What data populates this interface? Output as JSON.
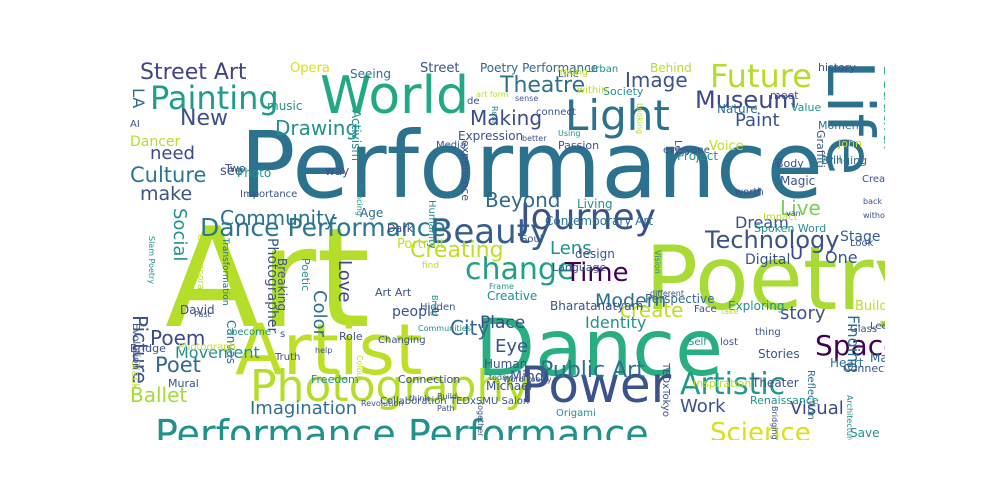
{
  "words": [
    {
      "text": "Art",
      "color": "#b5de2b"
    },
    {
      "text": "Performance",
      "color": "#2c728e"
    },
    {
      "text": "Poetry",
      "color": "#a8db34"
    },
    {
      "text": "Dance",
      "color": "#28ae80"
    },
    {
      "text": "Artist",
      "color": "#bddf26"
    },
    {
      "text": "World",
      "color": "#22a884"
    },
    {
      "text": "Life",
      "color": "#2d708e"
    },
    {
      "text": "Power",
      "color": "#3b528b"
    },
    {
      "text": "Photography",
      "color": "#b5de2b"
    },
    {
      "text": "Performance Performance",
      "color": "#21918c"
    },
    {
      "text": "Light",
      "color": "#2c728e"
    },
    {
      "text": "Journey",
      "color": "#3b528b"
    },
    {
      "text": "Beauty",
      "color": "#355f8d"
    },
    {
      "text": "Painting",
      "color": "#1f9e89"
    },
    {
      "text": "Future",
      "color": "#b5de2b"
    },
    {
      "text": "change",
      "color": "#1fa088"
    },
    {
      "text": "Space",
      "color": "#440154"
    },
    {
      "text": "Science",
      "color": "#d8e219"
    },
    {
      "text": "Artistic",
      "color": "#1f9a8a"
    },
    {
      "text": "Dance Performance",
      "color": "#2a788e"
    },
    {
      "text": "Technology",
      "color": "#3b528b"
    },
    {
      "text": "Museum",
      "color": "#3e4989"
    },
    {
      "text": "Time",
      "color": "#440154"
    },
    {
      "text": "Street Art",
      "color": "#414487"
    },
    {
      "text": "Culture",
      "color": "#2a788e"
    },
    {
      "text": "Theatre",
      "color": "#2c728e"
    },
    {
      "text": "Drawing",
      "color": "#21918c"
    },
    {
      "text": "Image",
      "color": "#3b528b"
    },
    {
      "text": "Making",
      "color": "#3e4a89"
    },
    {
      "text": "Creating",
      "color": "#bddf26"
    },
    {
      "text": "Ballet",
      "color": "#a5db36"
    },
    {
      "text": "Poet",
      "color": "#31688e"
    },
    {
      "text": "Poem",
      "color": "#3e4989"
    },
    {
      "text": "Public Art",
      "color": "#2d708e"
    },
    {
      "text": "Modern",
      "color": "#2e6f8e"
    },
    {
      "text": "Beautiful",
      "color": "#35b779"
    },
    {
      "text": "Live",
      "color": "#7ad151"
    },
    {
      "text": "Paint",
      "color": "#3b528b"
    },
    {
      "text": "Lens",
      "color": "#21918c"
    },
    {
      "text": "City",
      "color": "#31688e"
    },
    {
      "text": "Eye",
      "color": "#3b528b"
    },
    {
      "text": "Place",
      "color": "#3e4a89"
    },
    {
      "text": "Picture",
      "color": "#3b528b"
    },
    {
      "text": "Community",
      "color": "#2c728e"
    },
    {
      "text": "Beyond",
      "color": "#31688e"
    },
    {
      "text": "Work",
      "color": "#3b528b"
    },
    {
      "text": "Visual",
      "color": "#3e4989"
    },
    {
      "text": "Finding",
      "color": "#2c728e"
    },
    {
      "text": "New",
      "color": "#3b528b"
    },
    {
      "text": "need",
      "color": "#3e4989"
    },
    {
      "text": "make",
      "color": "#3b528b"
    },
    {
      "text": "Imagination",
      "color": "#2c728e"
    },
    {
      "text": "Identity",
      "color": "#21918c"
    },
    {
      "text": "create",
      "color": "#bddf26"
    },
    {
      "text": "story",
      "color": "#3b528b"
    },
    {
      "text": "Love",
      "color": "#3e4989"
    },
    {
      "text": "Color",
      "color": "#2c728e"
    },
    {
      "text": "Movement",
      "color": "#21918c"
    },
    {
      "text": "Digital",
      "color": "#3b528b"
    },
    {
      "text": "Dream",
      "color": "#3b528b"
    },
    {
      "text": "One",
      "color": "#3b528b"
    },
    {
      "text": "Stage",
      "color": "#355f8d"
    },
    {
      "text": "U",
      "color": "#3e4989"
    },
    {
      "text": "Social",
      "color": "#21918c"
    },
    {
      "text": "LA",
      "color": "#31688e"
    },
    {
      "text": "Opera",
      "color": "#d8e219"
    },
    {
      "text": "Seeing",
      "color": "#2c728e"
    },
    {
      "text": "Street",
      "color": "#3b528b"
    },
    {
      "text": "Poetry Performance",
      "color": "#31688e"
    },
    {
      "text": "Behind",
      "color": "#b5de2b"
    },
    {
      "text": "history",
      "color": "#3b528b"
    },
    {
      "text": "meet",
      "color": "#3b528b"
    },
    {
      "text": "Value",
      "color": "#21918c"
    },
    {
      "text": "Moment",
      "color": "#2c728e"
    },
    {
      "text": "John",
      "color": "#bddf26"
    },
    {
      "text": "Body",
      "color": "#3b528b"
    },
    {
      "text": "will",
      "color": "#2c728e"
    },
    {
      "text": "Magic",
      "color": "#3b528b"
    },
    {
      "text": "Creativity",
      "color": "#3b528b"
    },
    {
      "text": "Nature",
      "color": "#2c728e"
    },
    {
      "text": "Society",
      "color": "#21918c"
    },
    {
      "text": "Expression",
      "color": "#3b528b"
    },
    {
      "text": "Passion",
      "color": "#3b528b"
    },
    {
      "text": "Voice",
      "color": "#bddf26"
    },
    {
      "text": "experience",
      "color": "#3b528b"
    },
    {
      "text": "Contemporary Art",
      "color": "#2c728e"
    },
    {
      "text": "Language",
      "color": "#3b528b"
    },
    {
      "text": "Living",
      "color": "#21918c"
    },
    {
      "text": "Project",
      "color": "#21918c"
    },
    {
      "text": "Dancer",
      "color": "#b5de2b"
    },
    {
      "text": "Activism",
      "color": "#21918c"
    },
    {
      "text": "Age",
      "color": "#31688e"
    },
    {
      "text": "Dark",
      "color": "#3e4989"
    },
    {
      "text": "Portrait",
      "color": "#bddf26"
    },
    {
      "text": "design",
      "color": "#3b528b"
    },
    {
      "text": "Art Art",
      "color": "#3b528b"
    },
    {
      "text": "David",
      "color": "#3e4989"
    },
    {
      "text": "people",
      "color": "#3b528b"
    },
    {
      "text": "Canvas",
      "color": "#2c728e"
    },
    {
      "text": "Creative",
      "color": "#21918c"
    },
    {
      "text": "Bharatanatyam",
      "color": "#3b528b"
    },
    {
      "text": "Perspective",
      "color": "#31688e"
    },
    {
      "text": "Exploring",
      "color": "#21918c"
    },
    {
      "text": "Building",
      "color": "#bddf26"
    },
    {
      "text": "Glass",
      "color": "#3b528b"
    },
    {
      "text": "Lee",
      "color": "#3b528b"
    },
    {
      "text": "Matter",
      "color": "#31688e"
    },
    {
      "text": "Heart",
      "color": "#2c728e"
    },
    {
      "text": "Stories",
      "color": "#3b528b"
    },
    {
      "text": "Theater",
      "color": "#3b528b"
    },
    {
      "text": "Renaissance",
      "color": "#21918c"
    },
    {
      "text": "Inspiration",
      "color": "#bddf26"
    },
    {
      "text": "Human",
      "color": "#3b528b"
    },
    {
      "text": "Michael",
      "color": "#3b528b"
    },
    {
      "text": "Freedom",
      "color": "#21918c"
    },
    {
      "text": "Connection",
      "color": "#3b528b"
    },
    {
      "text": "Mural",
      "color": "#3b528b"
    },
    {
      "text": "Truth",
      "color": "#3b528b"
    },
    {
      "text": "Reflection",
      "color": "#2c728e"
    },
    {
      "text": "Bridge",
      "color": "#3b528b"
    },
    {
      "text": "Photograph",
      "color": "#bddf26"
    },
    {
      "text": "Black",
      "color": "#bddf26"
    },
    {
      "text": "Save",
      "color": "#21918c"
    },
    {
      "text": "Connecting",
      "color": "#3b528b"
    },
    {
      "text": "Collaboration",
      "color": "#3b528b"
    },
    {
      "text": "Origami",
      "color": "#21918c"
    },
    {
      "text": "TEDxSMU Salon",
      "color": "#3b528b"
    },
    {
      "text": "TEDxTokyo",
      "color": "#3b528b"
    },
    {
      "text": "Graffiti",
      "color": "#3b528b"
    },
    {
      "text": "Bringing",
      "color": "#2c728e"
    },
    {
      "text": "Look",
      "color": "#3b528b"
    },
    {
      "text": "Impact",
      "color": "#bddf26"
    },
    {
      "text": "worth",
      "color": "#3b528b"
    },
    {
      "text": "Spoken Word",
      "color": "#21918c"
    },
    {
      "text": "Photographer",
      "color": "#3b528b"
    },
    {
      "text": "Poetic",
      "color": "#21918c"
    },
    {
      "text": "Breaking",
      "color": "#3b528b"
    },
    {
      "text": "Two",
      "color": "#3b528b"
    },
    {
      "text": "AI",
      "color": "#3b528b"
    },
    {
      "text": "see",
      "color": "#3b528b"
    },
    {
      "text": "way",
      "color": "#3b528b"
    },
    {
      "text": "music",
      "color": "#21918c"
    },
    {
      "text": "Photo",
      "color": "#21918c"
    },
    {
      "text": "Importance",
      "color": "#3b528b"
    },
    {
      "text": "Humanity",
      "color": "#21918c"
    },
    {
      "text": "Soul",
      "color": "#3b528b"
    },
    {
      "text": "Hidden",
      "color": "#3b528b"
    },
    {
      "text": "Role",
      "color": "#3b528b"
    },
    {
      "text": "become",
      "color": "#21918c"
    },
    {
      "text": "Evolution",
      "color": "#3b528b"
    },
    {
      "text": "s",
      "color": "#3b528b"
    },
    {
      "text": "Changing",
      "color": "#3b528b"
    },
    {
      "text": "Mind",
      "color": "#3b528b"
    },
    {
      "text": "lost",
      "color": "#3b528b"
    },
    {
      "text": "Self",
      "color": "#21918c"
    },
    {
      "text": "Face",
      "color": "#3b528b"
    },
    {
      "text": "thing",
      "color": "#3b528b"
    },
    {
      "text": "Let",
      "color": "#3b528b"
    },
    {
      "text": "everyone",
      "color": "#3b528b"
    },
    {
      "text": "Media",
      "color": "#3b528b"
    },
    {
      "text": "Urban",
      "color": "#21918c"
    },
    {
      "text": "within",
      "color": "#bddf26"
    },
    {
      "text": "de",
      "color": "#3b528b"
    },
    {
      "text": "Line",
      "color": "#3b528b"
    },
    {
      "text": "connect",
      "color": "#3b528b"
    },
    {
      "text": "art form",
      "color": "#bddf26"
    },
    {
      "text": "Young",
      "color": "#bddf26"
    },
    {
      "text": "sense",
      "color": "#3b528b"
    },
    {
      "text": "Real",
      "color": "#21918c"
    },
    {
      "text": "Looking",
      "color": "#bddf26"
    },
    {
      "text": "Using",
      "color": "#21918c"
    },
    {
      "text": "better",
      "color": "#3b528b"
    },
    {
      "text": "find",
      "color": "#bddf26"
    },
    {
      "text": "Frame",
      "color": "#21918c"
    },
    {
      "text": "Bring",
      "color": "#21918c"
    },
    {
      "text": "different",
      "color": "#3b528b"
    },
    {
      "text": "Vision",
      "color": "#21918c"
    },
    {
      "text": "take",
      "color": "#bddf26"
    },
    {
      "text": "without",
      "color": "#3b528b"
    },
    {
      "text": "back",
      "color": "#3b528b"
    },
    {
      "text": "van",
      "color": "#3b528b"
    },
    {
      "text": "Past",
      "color": "#3b528b"
    },
    {
      "text": "Transformation",
      "color": "#2c728e"
    },
    {
      "text": "Contemporary",
      "color": "#bddf26"
    },
    {
      "text": "Slam Poetry",
      "color": "#21918c"
    },
    {
      "text": "Dancing",
      "color": "#21918c"
    },
    {
      "text": "Word Poetry",
      "color": "#3b528b"
    },
    {
      "text": "Revolution",
      "color": "#3b528b"
    },
    {
      "text": "today",
      "color": "#3b528b"
    },
    {
      "text": "Communities",
      "color": "#21918c"
    },
    {
      "text": "think",
      "color": "#3b528b"
    },
    {
      "text": "together",
      "color": "#3b528b"
    },
    {
      "text": "Build",
      "color": "#3b528b"
    },
    {
      "text": "Path",
      "color": "#3b528b"
    },
    {
      "text": "Colour",
      "color": "#bddf26"
    },
    {
      "text": "help",
      "color": "#3b528b"
    },
    {
      "text": "Architecture",
      "color": "#21918c"
    },
    {
      "text": "Bridging",
      "color": "#3b528b"
    }
  ]
}
